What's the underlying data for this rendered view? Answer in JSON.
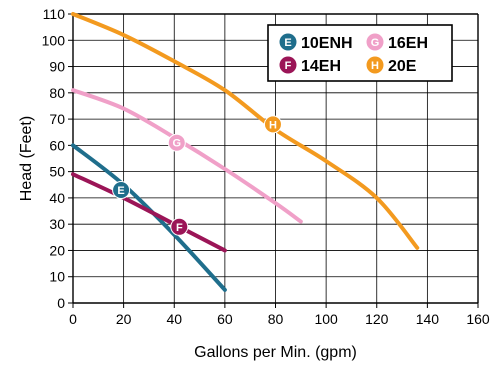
{
  "chart_data": {
    "type": "line",
    "xlabel": "Gallons per Min. (gpm)",
    "ylabel": "Head (Feet)",
    "xlim": [
      0,
      160
    ],
    "ylim": [
      0,
      110
    ],
    "x_ticks": [
      "0",
      "20",
      "40",
      "60",
      "80",
      "100",
      "120",
      "140",
      "160"
    ],
    "y_ticks": [
      "0",
      "10",
      "20",
      "30",
      "40",
      "50",
      "60",
      "70",
      "80",
      "90",
      "100",
      "110"
    ],
    "grid": true,
    "legend_position": "top-right",
    "series": [
      {
        "name": "10ENH",
        "marker": "E",
        "color": "#1f6e8c",
        "points": [
          [
            0,
            60
          ],
          [
            20,
            45
          ],
          [
            40,
            26
          ],
          [
            60,
            5
          ]
        ],
        "marker_at": [
          19,
          43
        ]
      },
      {
        "name": "14EH",
        "marker": "F",
        "color": "#9b1557",
        "points": [
          [
            0,
            49
          ],
          [
            20,
            40
          ],
          [
            40,
            30
          ],
          [
            60,
            20
          ]
        ],
        "marker_at": [
          42,
          29
        ]
      },
      {
        "name": "16EH",
        "marker": "G",
        "color": "#f0a0c8",
        "points": [
          [
            0,
            81
          ],
          [
            20,
            74
          ],
          [
            40,
            63
          ],
          [
            60,
            51
          ],
          [
            80,
            38
          ],
          [
            90,
            31
          ]
        ],
        "marker_at": [
          41,
          61
        ]
      },
      {
        "name": "20E",
        "marker": "H",
        "color": "#f39a1f",
        "points": [
          [
            0,
            110
          ],
          [
            20,
            102
          ],
          [
            40,
            92
          ],
          [
            60,
            81
          ],
          [
            80,
            66
          ],
          [
            100,
            54
          ],
          [
            120,
            40
          ],
          [
            136,
            21
          ]
        ],
        "marker_at": [
          79,
          68
        ]
      }
    ]
  }
}
